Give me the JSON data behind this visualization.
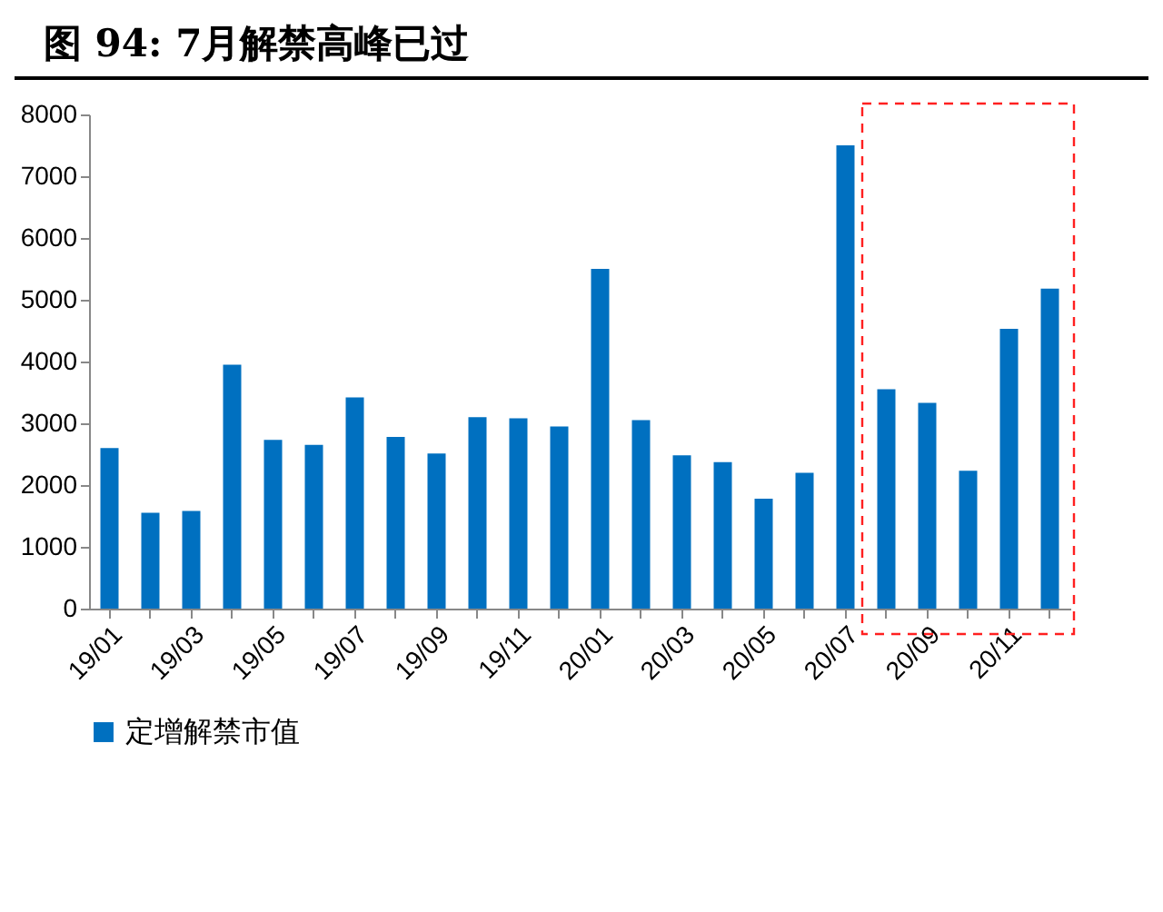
{
  "chart_data": {
    "type": "bar",
    "title": "图  94:  7月解禁高峰已过",
    "categories": [
      "19/01",
      null,
      "19/03",
      null,
      "19/05",
      null,
      "19/07",
      null,
      "19/09",
      null,
      "19/11",
      null,
      "20/01",
      null,
      "20/03",
      null,
      "20/05",
      null,
      "20/07",
      null,
      "20/09",
      null,
      "20/11",
      null
    ],
    "series": [
      {
        "name": "定增解禁市值",
        "color": "#0070c0",
        "values": [
          2600,
          1550,
          1580,
          3950,
          2730,
          2650,
          3420,
          2780,
          2510,
          3100,
          3080,
          2950,
          5500,
          3050,
          2480,
          2370,
          1780,
          2200,
          7500,
          3550,
          3330,
          2230,
          4530,
          5180
        ]
      }
    ],
    "ylim": [
      0,
      8000
    ],
    "yticks": [
      0,
      1000,
      2000,
      3000,
      4000,
      5000,
      6000,
      7000,
      8000
    ],
    "grid": false,
    "legend": "bottom"
  }
}
